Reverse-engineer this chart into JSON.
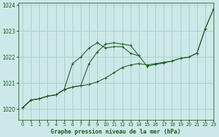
{
  "xlabel": "Graphe pression niveau de la mer (hPa)",
  "ylim": [
    1019.6,
    1024.1
  ],
  "xlim": [
    -0.5,
    23
  ],
  "yticks": [
    1020,
    1021,
    1022,
    1023,
    1024
  ],
  "xticks": [
    0,
    1,
    2,
    3,
    4,
    5,
    6,
    7,
    8,
    9,
    10,
    11,
    12,
    13,
    14,
    15,
    16,
    17,
    18,
    19,
    20,
    21,
    22,
    23
  ],
  "bg_color": "#cce8e8",
  "grid_color": "#aacece",
  "line_color": "#1a5e1a",
  "line1_x": [
    0,
    1,
    2,
    3,
    4,
    5,
    6,
    7,
    8,
    9,
    10,
    11,
    12,
    13,
    14,
    15,
    16,
    17,
    18,
    19,
    20,
    21,
    22,
    23
  ],
  "line1_y": [
    1020.05,
    1020.35,
    1020.4,
    1020.5,
    1020.55,
    1020.75,
    1020.85,
    1020.9,
    1020.95,
    1021.05,
    1021.2,
    1021.4,
    1021.6,
    1021.7,
    1021.75,
    1021.7,
    1021.75,
    1021.8,
    1021.85,
    1021.95,
    1022.0,
    1022.15,
    1023.1,
    1023.85
  ],
  "line2_x": [
    0,
    1,
    2,
    3,
    4,
    5,
    6,
    7,
    8,
    9,
    10,
    11,
    12,
    13,
    14,
    15,
    16,
    17,
    18,
    19,
    20,
    21,
    22,
    23
  ],
  "line2_y": [
    1020.05,
    1020.35,
    1020.4,
    1020.5,
    1020.55,
    1020.75,
    1021.75,
    1022.0,
    1022.35,
    1022.55,
    1022.35,
    1022.4,
    1022.4,
    1022.15,
    1022.05,
    1021.65,
    1021.72,
    1021.77,
    1021.85,
    1021.95,
    1022.0,
    1022.15,
    1023.1,
    1023.85
  ],
  "line3_x": [
    0,
    1,
    2,
    3,
    4,
    5,
    6,
    7,
    8,
    9,
    10,
    11,
    12,
    13,
    14
  ],
  "line3_y": [
    1020.05,
    1020.35,
    1020.4,
    1020.5,
    1020.55,
    1020.75,
    1020.85,
    1020.9,
    1021.75,
    1022.2,
    1022.5,
    1022.55,
    1022.5,
    1022.45,
    1022.05
  ]
}
